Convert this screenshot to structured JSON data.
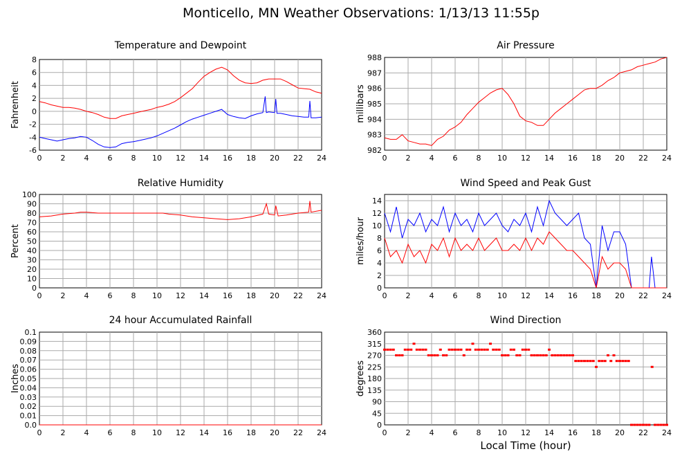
{
  "page": {
    "title": "Monticello, MN Weather Observations: 1/13/13 11:55p",
    "x_axis_label": "Local Time (hour)",
    "hour_ticks": [
      "0",
      "2",
      "4",
      "6",
      "8",
      "10",
      "12",
      "14",
      "16",
      "18",
      "20",
      "22",
      "24"
    ]
  },
  "chart_data": [
    {
      "id": "temp",
      "type": "line",
      "title": "Temperature and Dewpoint",
      "xlabel": "",
      "ylabel": "Fahrenheit",
      "xlim": [
        0,
        24
      ],
      "ylim": [
        -6,
        8
      ],
      "yticks": [
        -6,
        -4,
        -2,
        0,
        2,
        4,
        6,
        8
      ],
      "ytick_labels": [
        "-6",
        "-4",
        "-2",
        "0",
        "2",
        "4",
        "6",
        "8"
      ],
      "grid": true,
      "series": [
        {
          "color": "#ff0000",
          "style": "line",
          "x": [
            0,
            0.5,
            1,
            1.5,
            2,
            2.5,
            3,
            3.5,
            4,
            4.5,
            5,
            5.5,
            6,
            6.5,
            7,
            7.5,
            8,
            8.5,
            9,
            9.5,
            10,
            10.5,
            11,
            11.5,
            12,
            12.5,
            13,
            13.5,
            14,
            14.5,
            15,
            15.5,
            16,
            16.5,
            17,
            17.5,
            18,
            18.5,
            19,
            19.5,
            20,
            20.5,
            21,
            21.5,
            22,
            22.5,
            23,
            23.5,
            24
          ],
          "y": [
            1.5,
            1.3,
            1.0,
            0.8,
            0.6,
            0.6,
            0.5,
            0.3,
            0.0,
            -0.2,
            -0.5,
            -0.9,
            -1.1,
            -1.1,
            -0.7,
            -0.5,
            -0.3,
            -0.1,
            0.1,
            0.3,
            0.6,
            0.8,
            1.1,
            1.5,
            2.1,
            2.8,
            3.5,
            4.5,
            5.4,
            6.0,
            6.5,
            6.8,
            6.4,
            5.5,
            4.8,
            4.4,
            4.3,
            4.4,
            4.8,
            5.0,
            5.0,
            5.0,
            4.6,
            4.1,
            3.6,
            3.5,
            3.4,
            3.0,
            2.8
          ]
        },
        {
          "color": "#0000ff",
          "style": "line",
          "x": [
            0,
            0.5,
            1,
            1.5,
            2,
            2.5,
            3,
            3.5,
            4,
            4.5,
            5,
            5.5,
            6,
            6.5,
            7,
            7.5,
            8,
            8.5,
            9,
            9.5,
            10,
            10.5,
            11,
            11.5,
            12,
            12.5,
            13,
            13.5,
            14,
            14.5,
            15,
            15.5,
            16,
            16.5,
            17,
            17.5,
            18,
            18.5,
            19,
            19.2,
            19.3,
            19.5,
            20,
            20.1,
            20.2,
            20.5,
            21,
            21.5,
            22,
            22.5,
            22.9,
            23,
            23.1,
            23.5,
            24
          ],
          "y": [
            -4.0,
            -4.2,
            -4.4,
            -4.6,
            -4.4,
            -4.2,
            -4.1,
            -3.9,
            -4.0,
            -4.5,
            -5.1,
            -5.5,
            -5.6,
            -5.5,
            -5.0,
            -4.8,
            -4.7,
            -4.5,
            -4.3,
            -4.1,
            -3.8,
            -3.4,
            -3.0,
            -2.6,
            -2.1,
            -1.6,
            -1.2,
            -0.9,
            -0.6,
            -0.3,
            0.0,
            0.3,
            -0.5,
            -0.8,
            -1.0,
            -1.1,
            -0.7,
            -0.4,
            -0.2,
            2.3,
            -0.2,
            -0.1,
            -0.2,
            1.9,
            -0.3,
            -0.3,
            -0.5,
            -0.7,
            -0.8,
            -0.9,
            -0.9,
            1.6,
            -1.0,
            -1.0,
            -0.9
          ]
        }
      ]
    },
    {
      "id": "pressure",
      "type": "line",
      "title": "Air Pressure",
      "xlabel": "",
      "ylabel": "millibars",
      "xlim": [
        0,
        24
      ],
      "ylim": [
        982,
        988
      ],
      "yticks": [
        982,
        983,
        984,
        985,
        986,
        987,
        988
      ],
      "ytick_labels": [
        "982",
        "983",
        "984",
        "985",
        "986",
        "987",
        "988"
      ],
      "grid": true,
      "series": [
        {
          "color": "#ff0000",
          "style": "line",
          "x": [
            0,
            0.5,
            1,
            1.5,
            2,
            2.5,
            3,
            3.5,
            4,
            4.5,
            5,
            5.5,
            6,
            6.5,
            7,
            7.5,
            8,
            8.5,
            9,
            9.5,
            10,
            10.5,
            11,
            11.5,
            12,
            12.5,
            13,
            13.5,
            14,
            14.5,
            15,
            15.5,
            16,
            16.5,
            17,
            17.5,
            18,
            18.5,
            19,
            19.5,
            20,
            20.5,
            21,
            21.5,
            22,
            22.5,
            23,
            23.5,
            24
          ],
          "y": [
            982.8,
            982.7,
            982.7,
            983.0,
            982.6,
            982.5,
            982.4,
            982.4,
            982.3,
            982.7,
            982.9,
            983.3,
            983.5,
            983.8,
            984.3,
            984.7,
            985.1,
            985.4,
            985.7,
            985.9,
            986.0,
            985.6,
            985.0,
            984.2,
            983.9,
            983.8,
            983.6,
            983.6,
            984.0,
            984.4,
            984.7,
            985.0,
            985.3,
            985.6,
            985.9,
            986.0,
            986.0,
            986.2,
            986.5,
            986.7,
            987.0,
            987.1,
            987.2,
            987.4,
            987.5,
            987.6,
            987.7,
            987.9,
            988.0
          ]
        }
      ]
    },
    {
      "id": "humidity",
      "type": "line",
      "title": "Relative Humidity",
      "xlabel": "",
      "ylabel": "Percent",
      "xlim": [
        0,
        24
      ],
      "ylim": [
        0,
        100
      ],
      "yticks": [
        0,
        10,
        20,
        30,
        40,
        50,
        60,
        70,
        80,
        90,
        100
      ],
      "ytick_labels": [
        "0",
        "10",
        "20",
        "30",
        "40",
        "50",
        "60",
        "70",
        "80",
        "90",
        "100"
      ],
      "grid": true,
      "series": [
        {
          "color": "#ff0000",
          "style": "line",
          "x": [
            0,
            1,
            2,
            3,
            3.5,
            4,
            5,
            6,
            7,
            8,
            9,
            10,
            10.5,
            11,
            12,
            13,
            14,
            15,
            16,
            17,
            18,
            19,
            19.3,
            19.5,
            20,
            20.1,
            20.3,
            21,
            22,
            22.9,
            23,
            23.1,
            24
          ],
          "y": [
            76,
            77,
            79,
            80,
            81,
            81,
            80,
            80,
            80,
            80,
            80,
            80,
            80,
            79,
            78,
            76,
            75,
            74,
            73,
            74,
            76,
            79,
            90,
            79,
            78,
            88,
            77,
            78,
            80,
            81,
            93,
            81,
            83
          ]
        }
      ]
    },
    {
      "id": "wind-speed",
      "type": "line",
      "title": "Wind Speed and Peak Gust",
      "xlabel": "",
      "ylabel": "miles/hour",
      "xlim": [
        0,
        24
      ],
      "ylim": [
        0,
        15
      ],
      "yticks": [
        0,
        2,
        4,
        6,
        8,
        10,
        12,
        14
      ],
      "ytick_labels": [
        "0",
        "2",
        "4",
        "6",
        "8",
        "10",
        "12",
        "14"
      ],
      "grid": true,
      "series": [
        {
          "color": "#0000ff",
          "style": "line",
          "x": [
            0,
            0.5,
            1,
            1.5,
            2,
            2.5,
            3,
            3.5,
            4,
            4.5,
            5,
            5.5,
            6,
            6.5,
            7,
            7.5,
            8,
            8.5,
            9,
            9.5,
            10,
            10.5,
            11,
            11.5,
            12,
            12.5,
            13,
            13.5,
            14,
            14.5,
            15,
            15.5,
            16,
            16.5,
            17,
            17.5,
            18,
            18.5,
            19,
            19.5,
            20,
            20.5,
            21,
            21.5,
            22,
            22.5,
            22.7,
            23,
            23.5,
            24
          ],
          "y": [
            12,
            9,
            13,
            8,
            11,
            10,
            12,
            9,
            11,
            10,
            13,
            9,
            12,
            10,
            11,
            9,
            12,
            10,
            11,
            12,
            10,
            9,
            11,
            10,
            12,
            9,
            13,
            10,
            14,
            12,
            11,
            10,
            11,
            12,
            8,
            7,
            0,
            10,
            6,
            9,
            9,
            7,
            0,
            0,
            0,
            0,
            5,
            0,
            0,
            0
          ]
        },
        {
          "color": "#ff0000",
          "style": "line",
          "x": [
            0,
            0.5,
            1,
            1.5,
            2,
            2.5,
            3,
            3.5,
            4,
            4.5,
            5,
            5.5,
            6,
            6.5,
            7,
            7.5,
            8,
            8.5,
            9,
            9.5,
            10,
            10.5,
            11,
            11.5,
            12,
            12.5,
            13,
            13.5,
            14,
            14.5,
            15,
            15.5,
            16,
            16.5,
            17,
            17.5,
            18,
            18.5,
            19,
            19.5,
            20,
            20.5,
            21,
            21.5,
            22,
            22.5,
            23,
            23.5,
            24
          ],
          "y": [
            8,
            5,
            6,
            4,
            7,
            5,
            6,
            4,
            7,
            6,
            8,
            5,
            8,
            6,
            7,
            6,
            8,
            6,
            7,
            8,
            6,
            6,
            7,
            6,
            8,
            6,
            8,
            7,
            9,
            8,
            7,
            6,
            6,
            5,
            4,
            3,
            0,
            5,
            3,
            4,
            4,
            3,
            0,
            0,
            0,
            0,
            0,
            0,
            0
          ]
        }
      ]
    },
    {
      "id": "rainfall",
      "type": "line",
      "title": "24 hour Accumulated Rainfall",
      "xlabel": "",
      "ylabel": "Inches",
      "xlim": [
        0,
        24
      ],
      "ylim": [
        0,
        0.1
      ],
      "yticks": [
        0,
        0.01,
        0.02,
        0.03,
        0.04,
        0.05,
        0.06,
        0.07,
        0.08,
        0.09,
        0.1
      ],
      "ytick_labels": [
        "0.0",
        "0.01",
        "0.02",
        "0.03",
        "0.04",
        "0.05",
        "0.06",
        "0.07",
        "0.08",
        "0.09",
        "0.1"
      ],
      "grid": true,
      "series": [
        {
          "color": "#ff0000",
          "style": "line",
          "x": [
            0,
            24
          ],
          "y": [
            0,
            0
          ]
        }
      ]
    },
    {
      "id": "wind-dir",
      "type": "scatter",
      "title": "Wind Direction",
      "xlabel": "Local Time (hour)",
      "ylabel": "degrees",
      "xlim": [
        0,
        24
      ],
      "ylim": [
        0,
        360
      ],
      "yticks": [
        0,
        45,
        90,
        135,
        180,
        225,
        270,
        315,
        360
      ],
      "ytick_labels": [
        "0",
        "45",
        "90",
        "135",
        "180",
        "225",
        "270",
        "315",
        "360"
      ],
      "grid": true,
      "series": [
        {
          "color": "#ff0000",
          "style": "points",
          "x": [
            0,
            0.25,
            0.5,
            0.75,
            1,
            1.25,
            1.5,
            1.75,
            2,
            2.25,
            2.5,
            2.75,
            3,
            3.25,
            3.5,
            3.75,
            4,
            4.25,
            4.5,
            4.75,
            5,
            5.25,
            5.5,
            5.75,
            6,
            6.25,
            6.5,
            6.75,
            7,
            7.25,
            7.5,
            7.75,
            8,
            8.25,
            8.5,
            8.75,
            9,
            9.25,
            9.5,
            9.75,
            10,
            10.25,
            10.5,
            10.75,
            11,
            11.25,
            11.5,
            11.75,
            12,
            12.25,
            12.5,
            12.75,
            13,
            13.25,
            13.5,
            13.75,
            14,
            14.25,
            14.5,
            14.75,
            15,
            15.25,
            15.5,
            15.75,
            16,
            16.25,
            16.5,
            16.75,
            17,
            17.25,
            17.5,
            17.75,
            18,
            18.25,
            18.5,
            18.75,
            19,
            19.25,
            19.5,
            19.75,
            20,
            20.25,
            20.5,
            20.75,
            21,
            21.25,
            21.5,
            21.75,
            22,
            22.25,
            22.5,
            22.75,
            23,
            23.25,
            23.5,
            23.75,
            24
          ],
          "y": [
            292,
            292,
            292,
            292,
            270,
            270,
            270,
            292,
            292,
            292,
            315,
            292,
            292,
            292,
            292,
            270,
            270,
            270,
            270,
            292,
            270,
            270,
            292,
            292,
            292,
            292,
            292,
            270,
            292,
            292,
            315,
            292,
            292,
            292,
            292,
            292,
            315,
            292,
            292,
            292,
            270,
            270,
            270,
            292,
            292,
            270,
            270,
            292,
            292,
            292,
            270,
            270,
            270,
            270,
            270,
            270,
            292,
            270,
            270,
            270,
            270,
            270,
            270,
            270,
            270,
            248,
            248,
            248,
            248,
            248,
            248,
            248,
            225,
            248,
            248,
            248,
            270,
            248,
            270,
            248,
            248,
            248,
            248,
            248,
            0,
            0,
            0,
            0,
            0,
            0,
            0,
            225,
            0,
            0,
            0,
            0,
            0
          ]
        }
      ]
    }
  ]
}
